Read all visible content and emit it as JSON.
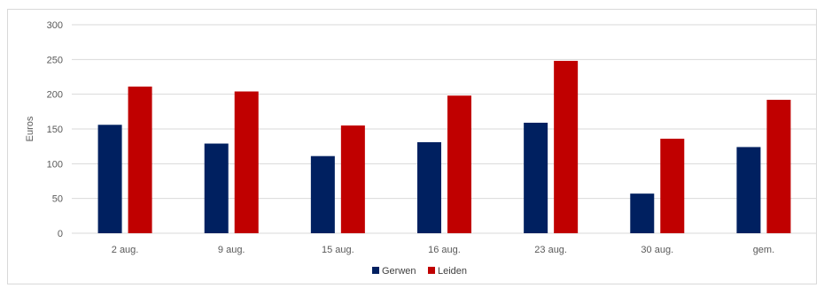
{
  "chart_data": {
    "type": "bar",
    "categories": [
      "2 aug.",
      "9 aug.",
      "15 aug.",
      "16 aug.",
      "23 aug.",
      "30 aug.",
      "gem."
    ],
    "series": [
      {
        "name": "Gerwen",
        "color": "#002060",
        "values": [
          156,
          129,
          111,
          131,
          159,
          57,
          124
        ]
      },
      {
        "name": "Leiden",
        "color": "#c00000",
        "values": [
          211,
          204,
          155,
          198,
          248,
          136,
          192
        ]
      }
    ],
    "title": "",
    "xlabel": "",
    "ylabel": "Euros",
    "ylim": [
      0,
      300
    ],
    "yticks": [
      0,
      50,
      100,
      150,
      200,
      250,
      300
    ],
    "grid": true,
    "legend": "bottom-center"
  }
}
